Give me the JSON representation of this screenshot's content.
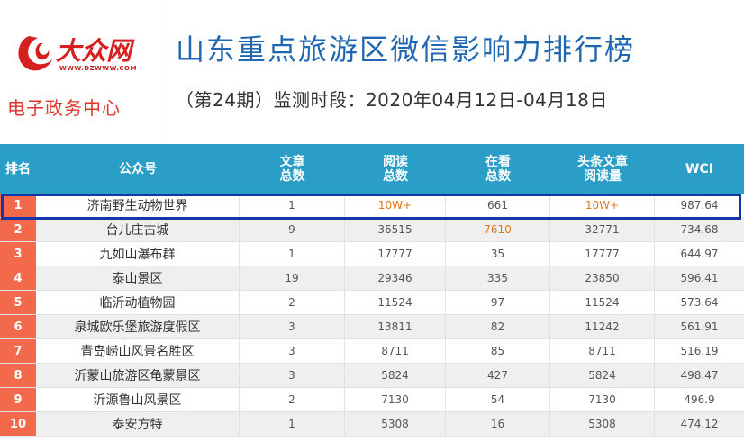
{
  "logo": {
    "brand_text": "大众网",
    "url_text": "WWW.DZWWW.COM",
    "brand_color": "#d62020"
  },
  "org_name": "电子政务中心",
  "title": "山东重点旅游区微信影响力排行榜",
  "subtitle": "（第24期）监测时段：2020年04月12日-04月18日",
  "colors": {
    "title": "#1f67b3",
    "header_bg": "#2b9ec8",
    "rank_bg": "#f26a4b",
    "highlight_text": "#e07818",
    "highlight_border": "#1437a8"
  },
  "table": {
    "headers": {
      "rank": "排名",
      "name": "公众号",
      "articles": "文章\n总数",
      "reads": "阅读\n总数",
      "looks": "在看\n总数",
      "headline_reads": "头条文章\n阅读量",
      "wci": "WCI"
    },
    "highlighted_row": 0,
    "rows": [
      {
        "rank": "1",
        "name": "济南野生动物世界",
        "articles": "1",
        "reads": "10W+",
        "looks": "661",
        "headline_reads": "10W+",
        "wci": "987.64"
      },
      {
        "rank": "2",
        "name": "台儿庄古城",
        "articles": "9",
        "reads": "36515",
        "looks": "7610",
        "headline_reads": "32771",
        "wci": "734.68"
      },
      {
        "rank": "3",
        "name": "九如山瀑布群",
        "articles": "1",
        "reads": "17777",
        "looks": "35",
        "headline_reads": "17777",
        "wci": "644.97"
      },
      {
        "rank": "4",
        "name": "泰山景区",
        "articles": "19",
        "reads": "29346",
        "looks": "335",
        "headline_reads": "23850",
        "wci": "596.41"
      },
      {
        "rank": "5",
        "name": "临沂动植物园",
        "articles": "2",
        "reads": "11524",
        "looks": "97",
        "headline_reads": "11524",
        "wci": "573.64"
      },
      {
        "rank": "6",
        "name": "泉城欧乐堡旅游度假区",
        "articles": "3",
        "reads": "13811",
        "looks": "82",
        "headline_reads": "11242",
        "wci": "561.91"
      },
      {
        "rank": "7",
        "name": "青岛崂山风景名胜区",
        "articles": "3",
        "reads": "8711",
        "looks": "85",
        "headline_reads": "8711",
        "wci": "516.19"
      },
      {
        "rank": "8",
        "name": "沂蒙山旅游区龟蒙景区",
        "articles": "3",
        "reads": "5824",
        "looks": "427",
        "headline_reads": "5824",
        "wci": "498.47"
      },
      {
        "rank": "9",
        "name": "沂源鲁山风景区",
        "articles": "2",
        "reads": "7130",
        "looks": "54",
        "headline_reads": "7130",
        "wci": "496.9"
      },
      {
        "rank": "10",
        "name": "泰安方特",
        "articles": "1",
        "reads": "5308",
        "looks": "16",
        "headline_reads": "5308",
        "wci": "474.12"
      }
    ]
  }
}
